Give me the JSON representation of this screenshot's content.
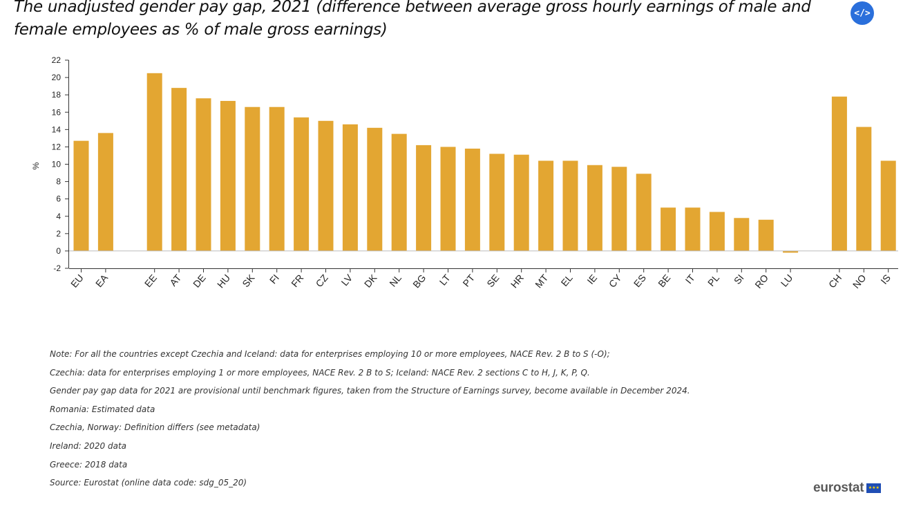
{
  "header": {
    "title": "The unadjusted gender pay gap, 2021 (difference between average gross hourly earnings of male and female employees as % of male gross earnings)",
    "embed_label": "</>"
  },
  "chart_data": {
    "type": "bar",
    "title": "The unadjusted gender pay gap, 2021 (difference between average gross hourly earnings of male and female employees as % of male gross earnings)",
    "xlabel": "",
    "ylabel": "%",
    "ylim": [
      -2,
      22
    ],
    "yticks": [
      -2,
      0,
      2,
      4,
      6,
      8,
      10,
      12,
      14,
      16,
      18,
      20,
      22
    ],
    "grid": false,
    "color": "#E3A632",
    "groups": [
      [
        "EU",
        "EA"
      ],
      [
        "EE",
        "AT",
        "DE",
        "HU",
        "SK",
        "FI",
        "FR",
        "CZ",
        "LV",
        "DK",
        "NL",
        "BG",
        "LT",
        "PT",
        "SE",
        "HR",
        "MT",
        "EL",
        "IE",
        "CY",
        "ES",
        "BE",
        "IT",
        "PL",
        "SI",
        "RO",
        "LU"
      ],
      [
        "CH",
        "NO",
        "IS"
      ]
    ],
    "categories": [
      "EU",
      "EA",
      "EE",
      "AT",
      "DE",
      "HU",
      "SK",
      "FI",
      "FR",
      "CZ",
      "LV",
      "DK",
      "NL",
      "BG",
      "LT",
      "PT",
      "SE",
      "HR",
      "MT",
      "EL",
      "IE",
      "CY",
      "ES",
      "BE",
      "IT",
      "PL",
      "SI",
      "RO",
      "LU",
      "CH",
      "NO",
      "IS"
    ],
    "values": [
      12.7,
      13.6,
      20.5,
      18.8,
      17.6,
      17.3,
      16.6,
      16.6,
      15.4,
      15.0,
      14.6,
      14.2,
      13.5,
      12.2,
      12.0,
      11.8,
      11.2,
      11.1,
      10.4,
      10.4,
      9.9,
      9.7,
      8.9,
      5.0,
      5.0,
      4.5,
      3.8,
      3.6,
      -0.2,
      17.8,
      14.3,
      10.4
    ]
  },
  "notes": [
    "Note: For all the countries except Czechia and Iceland: data for enterprises employing 10 or more employees, NACE Rev. 2 B to S (-O);",
    "Czechia: data for enterprises employing 1 or more employees, NACE Rev. 2 B to S; Iceland: NACE Rev. 2 sections C to H, J, K, P, Q.",
    "Gender pay gap data for 2021 are provisional until benchmark figures, taken from the Structure of Earnings survey, become available in December 2024.",
    "Romania: Estimated data",
    "Czechia, Norway: Definition differs (see metadata)",
    "Ireland: 2020 data",
    "Greece: 2018 data",
    "Source: Eurostat (online data code: sdg_05_20)"
  ],
  "logo": {
    "text": "eurostat",
    "flag_stars": "★★★"
  }
}
